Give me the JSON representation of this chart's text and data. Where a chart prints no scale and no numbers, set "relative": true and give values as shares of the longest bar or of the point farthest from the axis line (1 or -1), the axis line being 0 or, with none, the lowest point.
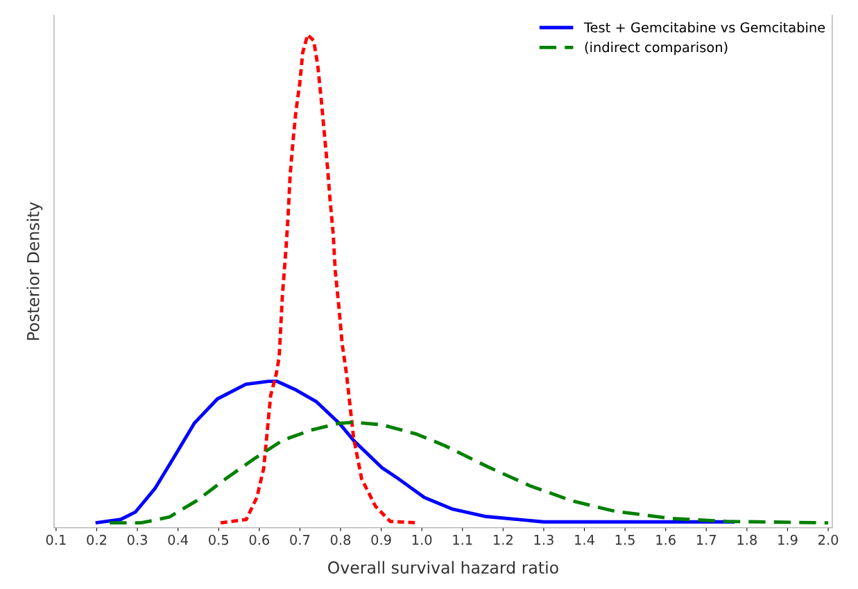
{
  "chart_data": {
    "type": "line",
    "xlabel": "Overall survival hazard ratio",
    "ylabel": "Posterior Density",
    "relative": true,
    "grid": false,
    "legend": "top right",
    "marker": "none",
    "xlim": [
      0.095,
      2.01
    ],
    "xticks": [
      {
        "value": 0.1,
        "label": "0.1"
      },
      {
        "value": 0.2,
        "label": "0.2"
      },
      {
        "value": 0.3,
        "label": "0.3"
      },
      {
        "value": 0.4,
        "label": "0.4"
      },
      {
        "value": 0.5,
        "label": "0.5"
      },
      {
        "value": 0.6,
        "label": "0.6"
      },
      {
        "value": 0.7,
        "label": "0.7"
      },
      {
        "value": 0.8,
        "label": "0.8"
      },
      {
        "value": 0.9,
        "label": "0.9"
      },
      {
        "value": 1.0,
        "label": "1.0"
      },
      {
        "value": 1.1,
        "label": "1.1"
      },
      {
        "value": 1.2,
        "label": "1.2"
      },
      {
        "value": 1.3,
        "label": "1.3"
      },
      {
        "value": 1.4,
        "label": "1.4"
      },
      {
        "value": 1.5,
        "label": "1.5"
      },
      {
        "value": 1.6,
        "label": "1.6"
      },
      {
        "value": 1.7,
        "label": "1.7"
      },
      {
        "value": 1.8,
        "label": "1.8"
      },
      {
        "value": 1.9,
        "label": "1.9"
      },
      {
        "value": 2.0,
        "label": "2.0"
      }
    ],
    "series": [
      {
        "name": "Test + Gemcitabine vs Gemcitabine",
        "color": "#0000ff",
        "line_style": "solid",
        "x": [
          0.197,
          0.259,
          0.295,
          0.343,
          0.392,
          0.44,
          0.497,
          0.567,
          0.623,
          0.644,
          0.691,
          0.741,
          0.797,
          0.832,
          0.902,
          0.943,
          1.006,
          1.076,
          1.158,
          1.3,
          1.5,
          1.77
        ],
        "values": [
          0.0,
          0.007,
          0.022,
          0.07,
          0.137,
          0.204,
          0.254,
          0.284,
          0.29,
          0.29,
          0.272,
          0.248,
          0.204,
          0.169,
          0.113,
          0.09,
          0.052,
          0.028,
          0.013,
          0.002,
          0.002,
          0.002
        ]
      },
      {
        "color": "#ff0000",
        "line_style": "dotted",
        "x": [
          0.505,
          0.568,
          0.594,
          0.611,
          0.628,
          0.642,
          0.649,
          0.657,
          0.666,
          0.671,
          0.676,
          0.683,
          0.69,
          0.7,
          0.707,
          0.719,
          0.734,
          0.744,
          0.753,
          0.76,
          0.768,
          0.774,
          0.782,
          0.787,
          0.796,
          0.804,
          0.815,
          0.832,
          0.852,
          0.886,
          0.922,
          0.992
        ],
        "values": [
          0.0,
          0.007,
          0.052,
          0.112,
          0.261,
          0.306,
          0.34,
          0.467,
          0.564,
          0.63,
          0.713,
          0.782,
          0.842,
          0.903,
          0.964,
          1.0,
          0.988,
          0.937,
          0.863,
          0.799,
          0.728,
          0.664,
          0.591,
          0.516,
          0.442,
          0.367,
          0.303,
          0.175,
          0.09,
          0.034,
          0.003,
          0.0
        ]
      },
      {
        "name": "(indirect comparison)",
        "color": "#008000",
        "line_style": "dashed",
        "x": [
          0.232,
          0.309,
          0.379,
          0.447,
          0.517,
          0.587,
          0.657,
          0.727,
          0.797,
          0.832,
          0.902,
          0.987,
          1.057,
          1.162,
          1.266,
          1.37,
          1.474,
          1.613,
          1.751,
          2.0
        ],
        "values": [
          0.0,
          0.0,
          0.012,
          0.046,
          0.09,
          0.131,
          0.169,
          0.19,
          0.204,
          0.206,
          0.201,
          0.182,
          0.158,
          0.115,
          0.076,
          0.045,
          0.024,
          0.009,
          0.003,
          0.0
        ]
      }
    ]
  }
}
